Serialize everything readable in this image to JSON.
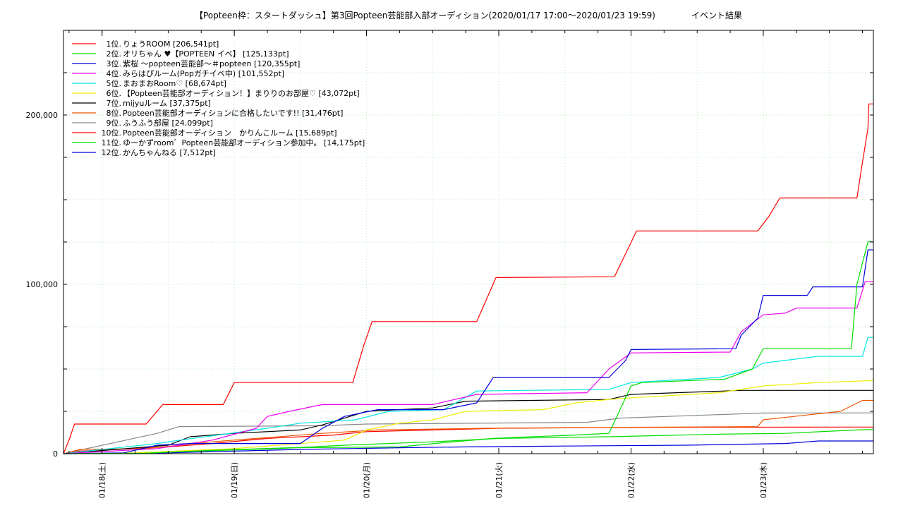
{
  "chart_data": {
    "type": "line",
    "title": "【Popteen枠：スタートダッシュ】第3回Popteen芸能部入部オーディション(2020/01/17 17:00〜2020/01/23 19:59)",
    "subtitle": "イベント結果",
    "xlabel": "",
    "ylabel": "",
    "xlim": [
      "2020-01-17 17:00",
      "2020-01-23 19:59"
    ],
    "ylim": [
      0,
      250000
    ],
    "y_ticks": [
      {
        "value": 0,
        "label": "0"
      },
      {
        "value": 100000,
        "label": "100,000"
      },
      {
        "value": 200000,
        "label": "200,000"
      }
    ],
    "x_ticks": [
      {
        "value": "2020-01-18",
        "label": "01/18(土)"
      },
      {
        "value": "2020-01-19",
        "label": "01/19(日)"
      },
      {
        "value": "2020-01-20",
        "label": "01/20(月)"
      },
      {
        "value": "2020-01-21",
        "label": "01/21(火)"
      },
      {
        "value": "2020-01-22",
        "label": "01/22(水)"
      },
      {
        "value": "2020-01-23",
        "label": "01/23(木)"
      }
    ],
    "grid": true,
    "legend_position": "top-left",
    "series": [
      {
        "name": "1位. りょうROOM [206,541pt]",
        "color": "#ff0000",
        "points": [
          [
            "2020-01-17 17:00",
            0
          ],
          [
            "2020-01-17 18:00",
            8000
          ],
          [
            "2020-01-17 19:00",
            17500
          ],
          [
            "2020-01-18 08:00",
            17500
          ],
          [
            "2020-01-18 11:00",
            29000
          ],
          [
            "2020-01-18 22:00",
            29000
          ],
          [
            "2020-01-19 00:00",
            42000
          ],
          [
            "2020-01-19 21:30",
            42000
          ],
          [
            "2020-01-19 23:30",
            64000
          ],
          [
            "2020-01-20 01:00",
            78000
          ],
          [
            "2020-01-20 20:00",
            78000
          ],
          [
            "2020-01-20 23:30",
            104000
          ],
          [
            "2020-01-21 21:00",
            104500
          ],
          [
            "2020-01-21 23:00",
            118000
          ],
          [
            "2020-01-22 01:00",
            131500
          ],
          [
            "2020-01-22 23:00",
            131500
          ],
          [
            "2020-01-23 01:00",
            140000
          ],
          [
            "2020-01-23 03:00",
            151000
          ],
          [
            "2020-01-23 17:00",
            151000
          ],
          [
            "2020-01-23 18:00",
            172000
          ],
          [
            "2020-01-23 19:00",
            192000
          ],
          [
            "2020-01-23 19:10",
            206541
          ],
          [
            "2020-01-23 19:59",
            206541
          ]
        ]
      },
      {
        "name": "2位. オリちゃん ♥【POPTEEN イベ】 [125,133pt]",
        "color": "#00dd00",
        "points": [
          [
            "2020-01-17 17:00",
            0
          ],
          [
            "2020-01-18 08:00",
            300
          ],
          [
            "2020-01-18 20:00",
            2000
          ],
          [
            "2020-01-19 10:00",
            3500
          ],
          [
            "2020-01-20 06:00",
            4000
          ],
          [
            "2020-01-20 14:00",
            6500
          ],
          [
            "2020-01-20 23:00",
            9000
          ],
          [
            "2020-01-21 06:00",
            10000
          ],
          [
            "2020-01-21 14:00",
            11000
          ],
          [
            "2020-01-21 17:00",
            11500
          ],
          [
            "2020-01-21 20:00",
            12000
          ],
          [
            "2020-01-22 00:00",
            40000
          ],
          [
            "2020-01-22 02:00",
            42000
          ],
          [
            "2020-01-22 17:00",
            44000
          ],
          [
            "2020-01-22 22:00",
            50000
          ],
          [
            "2020-01-23 00:00",
            62000
          ],
          [
            "2020-01-23 16:00",
            62000
          ],
          [
            "2020-01-23 17:00",
            100000
          ],
          [
            "2020-01-23 19:00",
            125133
          ],
          [
            "2020-01-23 19:59",
            125133
          ]
        ]
      },
      {
        "name": "3位. 紫桜 〜popteen芸能部〜＃popteen [120,355pt]",
        "color": "#0000dd",
        "points": [
          [
            "2020-01-17 17:00",
            0
          ],
          [
            "2020-01-18 04:00",
            500
          ],
          [
            "2020-01-18 10:00",
            5000
          ],
          [
            "2020-01-18 16:00",
            6000
          ],
          [
            "2020-01-19 12:00",
            6000
          ],
          [
            "2020-01-19 16:00",
            15000
          ],
          [
            "2020-01-19 20:00",
            22000
          ],
          [
            "2020-01-20 02:00",
            26000
          ],
          [
            "2020-01-20 14:00",
            26000
          ],
          [
            "2020-01-20 20:00",
            30000
          ],
          [
            "2020-01-20 23:00",
            45000
          ],
          [
            "2020-01-21 20:00",
            45000
          ],
          [
            "2020-01-21 23:00",
            55000
          ],
          [
            "2020-01-22 00:00",
            61500
          ],
          [
            "2020-01-22 19:00",
            62000
          ],
          [
            "2020-01-22 20:00",
            70000
          ],
          [
            "2020-01-22 23:00",
            80000
          ],
          [
            "2020-01-23 00:00",
            93500
          ],
          [
            "2020-01-23 08:00",
            93500
          ],
          [
            "2020-01-23 09:00",
            98500
          ],
          [
            "2020-01-23 18:00",
            98500
          ],
          [
            "2020-01-23 19:00",
            120355
          ],
          [
            "2020-01-23 19:59",
            120355
          ]
        ]
      },
      {
        "name": "4位. みらはぴルーム(Popガチイベ中) [101,552pt]",
        "color": "#ee00ee",
        "points": [
          [
            "2020-01-17 17:00",
            0
          ],
          [
            "2020-01-18 10:00",
            3000
          ],
          [
            "2020-01-18 20:00",
            8000
          ],
          [
            "2020-01-19 04:00",
            15000
          ],
          [
            "2020-01-19 06:00",
            22000
          ],
          [
            "2020-01-19 10:00",
            25000
          ],
          [
            "2020-01-19 16:00",
            29000
          ],
          [
            "2020-01-20 12:00",
            29000
          ],
          [
            "2020-01-20 20:00",
            35000
          ],
          [
            "2020-01-21 16:00",
            36000
          ],
          [
            "2020-01-21 20:00",
            50000
          ],
          [
            "2020-01-22 00:00",
            59500
          ],
          [
            "2020-01-22 18:00",
            60000
          ],
          [
            "2020-01-22 20:00",
            72000
          ],
          [
            "2020-01-23 00:00",
            82000
          ],
          [
            "2020-01-23 04:00",
            83000
          ],
          [
            "2020-01-23 06:00",
            86000
          ],
          [
            "2020-01-23 17:00",
            86000
          ],
          [
            "2020-01-23 18:30",
            101552
          ],
          [
            "2020-01-23 19:59",
            101552
          ]
        ]
      },
      {
        "name": "5位. まおまおRoom♡ [68,674pt]",
        "color": "#00e5e5",
        "points": [
          [
            "2020-01-17 17:00",
            0
          ],
          [
            "2020-01-18 10:00",
            6000
          ],
          [
            "2020-01-18 12:00",
            7000
          ],
          [
            "2020-01-19 06:00",
            15000
          ],
          [
            "2020-01-19 12:00",
            18000
          ],
          [
            "2020-01-19 22:00",
            20000
          ],
          [
            "2020-01-20 04:00",
            25000
          ],
          [
            "2020-01-20 14:00",
            26000
          ],
          [
            "2020-01-20 20:00",
            37000
          ],
          [
            "2020-01-21 20:00",
            38000
          ],
          [
            "2020-01-22 00:00",
            42000
          ],
          [
            "2020-01-22 16:00",
            45000
          ],
          [
            "2020-01-22 22:00",
            50000
          ],
          [
            "2020-01-23 00:00",
            53500
          ],
          [
            "2020-01-23 10:00",
            57500
          ],
          [
            "2020-01-23 18:00",
            57500
          ],
          [
            "2020-01-23 19:00",
            68674
          ],
          [
            "2020-01-23 19:59",
            68674
          ]
        ]
      },
      {
        "name": "6位. 【Popteen芸能部オーディション！】まりりのお部屋♡ [43,072pt]",
        "color": "#eeee00",
        "points": [
          [
            "2020-01-17 17:00",
            0
          ],
          [
            "2020-01-18 06:00",
            500
          ],
          [
            "2020-01-19 00:00",
            3000
          ],
          [
            "2020-01-19 20:00",
            8000
          ],
          [
            "2020-01-20 00:00",
            14000
          ],
          [
            "2020-01-20 06:00",
            18000
          ],
          [
            "2020-01-20 12:00",
            20000
          ],
          [
            "2020-01-20 18:00",
            25000
          ],
          [
            "2020-01-21 08:00",
            26000
          ],
          [
            "2020-01-21 14:00",
            30000
          ],
          [
            "2020-01-21 20:00",
            32000
          ],
          [
            "2020-01-22 00:00",
            33000
          ],
          [
            "2020-01-22 16:00",
            36000
          ],
          [
            "2020-01-23 00:00",
            40000
          ],
          [
            "2020-01-23 10:00",
            42000
          ],
          [
            "2020-01-23 19:00",
            43072
          ],
          [
            "2020-01-23 19:59",
            43072
          ]
        ]
      },
      {
        "name": "7位. mijyuルーム [37,375pt]",
        "color": "#000000",
        "points": [
          [
            "2020-01-17 17:00",
            0
          ],
          [
            "2020-01-18 12:00",
            5000
          ],
          [
            "2020-01-18 16:00",
            10000
          ],
          [
            "2020-01-19 00:00",
            12000
          ],
          [
            "2020-01-19 12:00",
            14000
          ],
          [
            "2020-01-19 16:00",
            17000
          ],
          [
            "2020-01-20 00:00",
            25000
          ],
          [
            "2020-01-20 12:00",
            27000
          ],
          [
            "2020-01-20 18:00",
            31000
          ],
          [
            "2020-01-21 20:00",
            32000
          ],
          [
            "2020-01-22 00:00",
            35000
          ],
          [
            "2020-01-22 20:00",
            37375
          ],
          [
            "2020-01-23 19:59",
            37375
          ]
        ]
      },
      {
        "name": "8位. Popteen芸能部オーディションに合格したいです!! [31,476pt]",
        "color": "#ee5500",
        "points": [
          [
            "2020-01-17 17:00",
            0
          ],
          [
            "2020-01-17 20:00",
            2500
          ],
          [
            "2020-01-18 08:00",
            3000
          ],
          [
            "2020-01-18 20:00",
            7000
          ],
          [
            "2020-01-19 04:00",
            9000
          ],
          [
            "2020-01-19 16:00",
            12000
          ],
          [
            "2020-01-20 02:00",
            14000
          ],
          [
            "2020-01-20 22:00",
            15000
          ],
          [
            "2020-01-21 20:00",
            15500
          ],
          [
            "2020-01-22 23:00",
            16000
          ],
          [
            "2020-01-23 00:00",
            20000
          ],
          [
            "2020-01-23 14:00",
            25000
          ],
          [
            "2020-01-23 18:00",
            31476
          ],
          [
            "2020-01-23 19:59",
            31476
          ]
        ]
      },
      {
        "name": "9位. ふうふう部屋 [24,099pt]",
        "color": "#888888",
        "points": [
          [
            "2020-01-17 17:00",
            0
          ],
          [
            "2020-01-18 10:00",
            12000
          ],
          [
            "2020-01-18 14:00",
            16000
          ],
          [
            "2020-01-19 16:00",
            16500
          ],
          [
            "2020-01-20 00:00",
            17500
          ],
          [
            "2020-01-21 16:00",
            18500
          ],
          [
            "2020-01-21 22:00",
            21000
          ],
          [
            "2020-01-23 00:00",
            24000
          ],
          [
            "2020-01-23 19:00",
            24099
          ],
          [
            "2020-01-23 19:59",
            24099
          ]
        ]
      },
      {
        "name": "10位. Popteen芸能部オーディション　かりんこルーム [15,689pt]",
        "color": "#ff0000",
        "points": [
          [
            "2020-01-17 17:00",
            0
          ],
          [
            "2020-01-17 20:00",
            1500
          ],
          [
            "2020-01-18 12:00",
            4000
          ],
          [
            "2020-01-18 20:00",
            6000
          ],
          [
            "2020-01-19 06:00",
            9000
          ],
          [
            "2020-01-19 18:00",
            11000
          ],
          [
            "2020-01-20 00:00",
            13000
          ],
          [
            "2020-01-20 12:00",
            14000
          ],
          [
            "2020-01-21 00:00",
            15000
          ],
          [
            "2020-01-22 00:00",
            15500
          ],
          [
            "2020-01-23 12:00",
            15689
          ],
          [
            "2020-01-23 19:59",
            15689
          ]
        ]
      },
      {
        "name": "11位. ゆーかずroom゛Popteen芸能部オーディション参加中。 [14,175pt]",
        "color": "#00dd00",
        "points": [
          [
            "2020-01-17 17:00",
            0
          ],
          [
            "2020-01-18 08:00",
            500
          ],
          [
            "2020-01-19 08:00",
            3000
          ],
          [
            "2020-01-19 20:00",
            5000
          ],
          [
            "2020-01-20 12:00",
            7000
          ],
          [
            "2020-01-21 00:00",
            9000
          ],
          [
            "2020-01-21 20:00",
            10000
          ],
          [
            "2020-01-22 16:00",
            11500
          ],
          [
            "2020-01-23 04:00",
            12000
          ],
          [
            "2020-01-23 18:00",
            14175
          ],
          [
            "2020-01-23 19:59",
            14175
          ]
        ]
      },
      {
        "name": "12位. かんちゃんねる [7,512pt]",
        "color": "#0000dd",
        "points": [
          [
            "2020-01-17 17:00",
            0
          ],
          [
            "2020-01-18 12:00",
            500
          ],
          [
            "2020-01-19 00:00",
            1500
          ],
          [
            "2020-01-19 12:00",
            2500
          ],
          [
            "2020-01-20 06:00",
            3500
          ],
          [
            "2020-01-20 18:00",
            4000
          ],
          [
            "2020-01-21 12:00",
            4500
          ],
          [
            "2020-01-22 10:00",
            5000
          ],
          [
            "2020-01-23 04:00",
            6000
          ],
          [
            "2020-01-23 10:00",
            7500
          ],
          [
            "2020-01-23 19:59",
            7512
          ]
        ]
      }
    ]
  }
}
